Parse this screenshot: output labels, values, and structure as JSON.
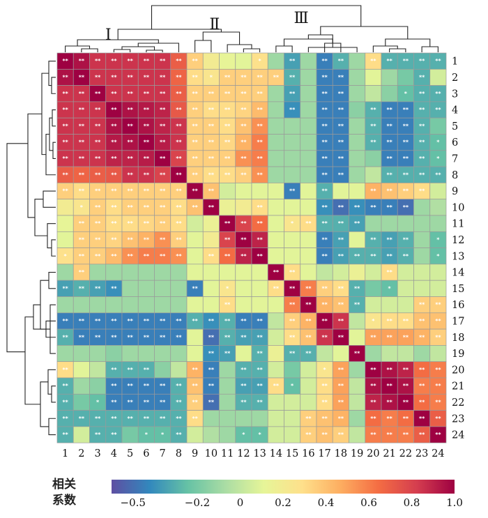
{
  "chart_data": {
    "type": "heatmap",
    "labels": [
      "1",
      "2",
      "3",
      "4",
      "5",
      "6",
      "7",
      "8",
      "9",
      "10",
      "11",
      "12",
      "13",
      "14",
      "15",
      "16",
      "17",
      "18",
      "19",
      "20",
      "21",
      "22",
      "23",
      "24"
    ],
    "cluster_labels": [
      "Ⅰ",
      "Ⅱ",
      "Ⅲ"
    ],
    "colorbar": {
      "title_line1": "相关",
      "title_line2": "系数",
      "ticks": [
        "−0.5",
        "−0.2",
        "0",
        "0.2",
        "0.4",
        "0.6",
        "0.8",
        "1.0"
      ],
      "tick_values": [
        -0.5,
        -0.2,
        0,
        0.2,
        0.4,
        0.6,
        0.8,
        1.0
      ],
      "min": -0.6,
      "max": 1.0,
      "colors": [
        "#5e4fa2",
        "#3288bd",
        "#66c2a5",
        "#abdda4",
        "#e6f598",
        "#fee08b",
        "#fdae61",
        "#f46d43",
        "#d53e4f",
        "#9e0142"
      ]
    },
    "legend_placement": "bottom",
    "groups": {
      "A": [
        1,
        2,
        3,
        4,
        5,
        6,
        7,
        8
      ],
      "B": [
        9,
        10,
        11,
        12,
        13
      ],
      "C": [
        14,
        15,
        16,
        19
      ],
      "D": [
        17,
        18
      ],
      "E": [
        20,
        21,
        22,
        23,
        24
      ]
    },
    "block_values": {
      "AA": 0.85,
      "AB": 0.35,
      "AC": -0.1,
      "AD": -0.45,
      "AE": -0.3,
      "BB": 0.4,
      "BC": 0.1,
      "BD": -0.3,
      "BE": -0.1,
      "CC": 0.15,
      "CD": 0.2,
      "CE": 0.05,
      "DD": 0.75,
      "DE": 0.4,
      "EE": 0.7
    },
    "overrides": [
      [
        1,
        2,
        0.95
      ],
      [
        1,
        8,
        0.7
      ],
      [
        1,
        9,
        0.35
      ],
      [
        1,
        10,
        0.2
      ],
      [
        1,
        11,
        0.12
      ],
      [
        1,
        12,
        0.1
      ],
      [
        1,
        13,
        0.28
      ],
      [
        1,
        15,
        -0.35
      ],
      [
        1,
        17,
        -0.45
      ],
      [
        1,
        18,
        -0.3
      ],
      [
        1,
        20,
        0.3
      ],
      [
        2,
        3,
        0.85
      ],
      [
        2,
        8,
        0.68
      ],
      [
        2,
        9,
        0.3
      ],
      [
        2,
        10,
        0.25
      ],
      [
        2,
        14,
        0.35
      ],
      [
        2,
        15,
        -0.3
      ],
      [
        2,
        20,
        0.1
      ],
      [
        2,
        21,
        -0.1
      ],
      [
        2,
        22,
        -0.2
      ],
      [
        2,
        24,
        0.05
      ],
      [
        3,
        8,
        0.7
      ],
      [
        3,
        15,
        -0.35
      ],
      [
        3,
        20,
        0.0
      ],
      [
        3,
        21,
        -0.15
      ],
      [
        3,
        22,
        -0.25
      ],
      [
        4,
        5,
        0.95
      ],
      [
        4,
        6,
        0.93
      ],
      [
        4,
        7,
        0.9
      ],
      [
        4,
        8,
        0.72
      ],
      [
        4,
        9,
        0.35
      ],
      [
        4,
        10,
        0.3
      ],
      [
        4,
        11,
        0.3
      ],
      [
        4,
        12,
        0.33
      ],
      [
        4,
        13,
        0.42
      ],
      [
        4,
        15,
        -0.4
      ],
      [
        4,
        19,
        -0.15
      ],
      [
        4,
        21,
        -0.45
      ],
      [
        4,
        22,
        -0.45
      ],
      [
        5,
        6,
        0.95
      ],
      [
        5,
        7,
        0.9
      ],
      [
        5,
        11,
        0.3
      ],
      [
        5,
        12,
        0.4
      ],
      [
        5,
        13,
        0.55
      ],
      [
        5,
        21,
        -0.45
      ],
      [
        5,
        22,
        -0.45
      ],
      [
        5,
        24,
        -0.2
      ],
      [
        6,
        7,
        0.92
      ],
      [
        6,
        11,
        0.32
      ],
      [
        6,
        12,
        0.45
      ],
      [
        6,
        13,
        0.6
      ],
      [
        6,
        21,
        -0.45
      ],
      [
        6,
        22,
        -0.45
      ],
      [
        6,
        24,
        -0.25
      ],
      [
        7,
        8,
        0.8
      ],
      [
        7,
        11,
        0.35
      ],
      [
        7,
        12,
        0.55
      ],
      [
        7,
        13,
        0.6
      ],
      [
        7,
        20,
        -0.15
      ],
      [
        7,
        21,
        -0.45
      ],
      [
        7,
        22,
        -0.45
      ],
      [
        7,
        24,
        -0.25
      ],
      [
        8,
        9,
        0.35
      ],
      [
        8,
        10,
        0.3
      ],
      [
        8,
        11,
        0.3
      ],
      [
        8,
        12,
        0.35
      ],
      [
        8,
        13,
        0.55
      ],
      [
        8,
        20,
        0.0
      ],
      [
        8,
        21,
        -0.3
      ],
      [
        8,
        22,
        -0.3
      ],
      [
        9,
        10,
        0.4
      ],
      [
        9,
        11,
        0.05
      ],
      [
        9,
        12,
        0.1
      ],
      [
        9,
        13,
        0.1
      ],
      [
        9,
        15,
        -0.45
      ],
      [
        9,
        18,
        0.1
      ],
      [
        9,
        20,
        0.45
      ],
      [
        9,
        21,
        0.4
      ],
      [
        9,
        22,
        0.35
      ],
      [
        9,
        23,
        0.3
      ],
      [
        9,
        24,
        0.05
      ],
      [
        10,
        11,
        0.15
      ],
      [
        10,
        12,
        0.2
      ],
      [
        10,
        13,
        0.3
      ],
      [
        10,
        17,
        -0.4
      ],
      [
        10,
        18,
        -0.5
      ],
      [
        10,
        19,
        -0.4
      ],
      [
        10,
        20,
        -0.45
      ],
      [
        10,
        21,
        -0.45
      ],
      [
        10,
        22,
        -0.5
      ],
      [
        10,
        23,
        -0.1
      ],
      [
        10,
        24,
        -0.05
      ],
      [
        11,
        12,
        0.8
      ],
      [
        11,
        13,
        0.65
      ],
      [
        11,
        14,
        0.1
      ],
      [
        11,
        15,
        0.25
      ],
      [
        11,
        16,
        0.3
      ],
      [
        11,
        19,
        -0.35
      ],
      [
        12,
        13,
        0.9
      ],
      [
        12,
        17,
        -0.45
      ],
      [
        12,
        18,
        -0.35
      ],
      [
        12,
        20,
        -0.3
      ],
      [
        12,
        21,
        -0.35
      ],
      [
        12,
        22,
        -0.3
      ],
      [
        12,
        24,
        -0.25
      ],
      [
        13,
        17,
        -0.45
      ],
      [
        13,
        18,
        -0.35
      ],
      [
        13,
        19,
        -0.3
      ],
      [
        13,
        20,
        -0.3
      ],
      [
        13,
        21,
        -0.35
      ],
      [
        13,
        22,
        -0.3
      ],
      [
        13,
        24,
        -0.25
      ],
      [
        14,
        15,
        0.3
      ],
      [
        14,
        16,
        0.1
      ],
      [
        14,
        17,
        0.0
      ],
      [
        14,
        18,
        0.05
      ],
      [
        14,
        21,
        0.3
      ],
      [
        15,
        16,
        0.6
      ],
      [
        15,
        17,
        0.35
      ],
      [
        15,
        18,
        0.3
      ],
      [
        15,
        19,
        -0.3
      ],
      [
        15,
        20,
        -0.2
      ],
      [
        15,
        21,
        -0.25
      ],
      [
        16,
        17,
        0.45
      ],
      [
        16,
        18,
        0.4
      ],
      [
        16,
        19,
        -0.3
      ],
      [
        16,
        23,
        0.35
      ],
      [
        16,
        24,
        0.35
      ],
      [
        17,
        18,
        0.85
      ],
      [
        17,
        19,
        0.0
      ],
      [
        17,
        20,
        0.25
      ],
      [
        17,
        21,
        0.3
      ],
      [
        17,
        22,
        0.3
      ],
      [
        18,
        19,
        0.1
      ],
      [
        18,
        20,
        0.5
      ],
      [
        18,
        21,
        0.5
      ],
      [
        18,
        22,
        0.5
      ],
      [
        18,
        23,
        0.45
      ],
      [
        18,
        24,
        0.35
      ],
      [
        19,
        20,
        -0.1
      ],
      [
        19,
        21,
        0.0
      ],
      [
        19,
        22,
        0.0
      ],
      [
        19,
        23,
        -0.1
      ],
      [
        19,
        24,
        0.0
      ],
      [
        20,
        21,
        0.95
      ],
      [
        20,
        22,
        0.9
      ],
      [
        20,
        23,
        0.65
      ],
      [
        20,
        24,
        0.6
      ],
      [
        21,
        22,
        0.95
      ],
      [
        21,
        23,
        0.6
      ],
      [
        21,
        24,
        0.6
      ],
      [
        22,
        23,
        0.65
      ],
      [
        22,
        24,
        0.6
      ],
      [
        23,
        24,
        0.7
      ]
    ]
  }
}
